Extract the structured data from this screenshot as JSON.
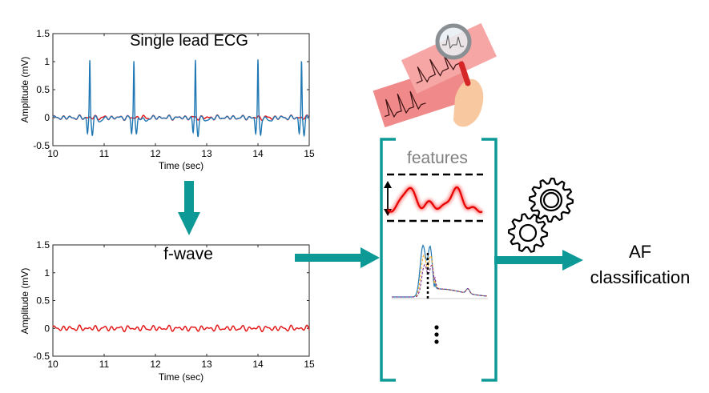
{
  "ecg_plot": {
    "title": "Single lead ECG",
    "xlabel": "Time (sec)",
    "ylabel": "Amplitude (mV)",
    "xticks": [
      "10",
      "11",
      "12",
      "13",
      "14",
      "15"
    ],
    "yticks": [
      "1.5",
      "1",
      "0.5",
      "0",
      "-0.5"
    ],
    "xlim": [
      10,
      15
    ],
    "ylim": [
      -0.5,
      1.5
    ],
    "r_peaks_sec": [
      10.72,
      11.58,
      12.78,
      14.0,
      14.85
    ],
    "colors": {
      "ecg": "#1f77b4",
      "fwave": "#e31a1c"
    }
  },
  "fwave_plot": {
    "title": "f-wave",
    "xlabel": "Time (sec)",
    "ylabel": "Amplitude (mV)",
    "xticks": [
      "10",
      "11",
      "12",
      "13",
      "14",
      "15"
    ],
    "yticks": [
      "1.5",
      "1",
      "0.5",
      "0",
      "-0.5"
    ],
    "xlim": [
      10,
      15
    ],
    "ylim": [
      -0.5,
      1.5
    ],
    "color": "#e31a1c"
  },
  "features_box": {
    "title": "features",
    "bracket_color": "#0d9a97",
    "title_color": "#7f7f7f"
  },
  "output": {
    "line1": "AF",
    "line2": "classification"
  },
  "arrow_color": "#0d9a97",
  "icons": {
    "magnifier": "magnifier-ecg-icon",
    "gears": "gears-icon",
    "amplitude": "amplitude-arrow-icon",
    "ellipsis": "vertical-ellipsis-icon"
  }
}
